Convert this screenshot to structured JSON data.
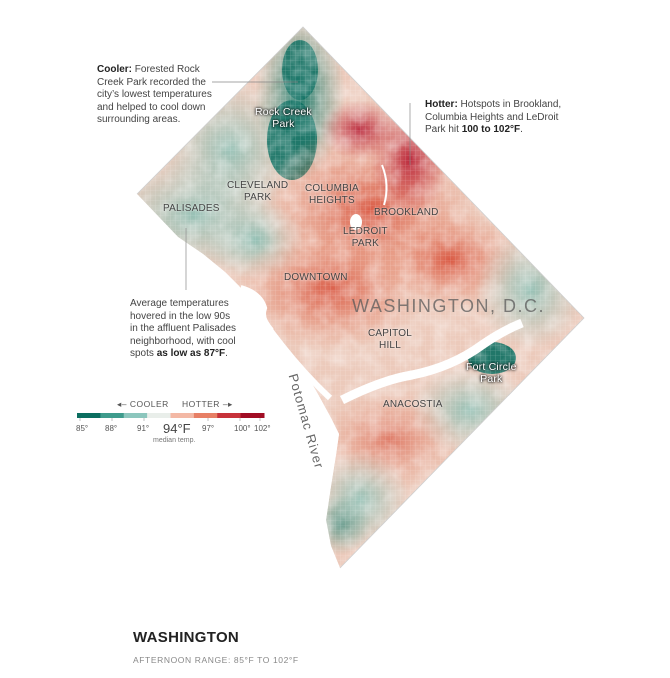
{
  "map": {
    "places": [
      {
        "id": "rock-creek-park",
        "text": "Rock Creek\nPark",
        "park": true
      },
      {
        "id": "cleveland-park",
        "text": "CLEVELAND\nPARK"
      },
      {
        "id": "columbia-heights",
        "text": "COLUMBIA\nHEIGHTS"
      },
      {
        "id": "brookland",
        "text": "BROOKLAND"
      },
      {
        "id": "palisades",
        "text": "PALISADES"
      },
      {
        "id": "ledroit-park",
        "text": "LEDROIT\nPARK"
      },
      {
        "id": "downtown",
        "text": "DOWNTOWN"
      },
      {
        "id": "capitol-hill",
        "text": "CAPITOL\nHILL"
      },
      {
        "id": "fort-circle-park",
        "text": "Fort Circle\nPark",
        "park": true
      },
      {
        "id": "anacostia",
        "text": "ANACOSTIA"
      }
    ],
    "city_label": "WASHINGTON, D.C.",
    "river_label": "Potomac River"
  },
  "annotations": {
    "cooler": {
      "lead": "Cooler:",
      "text": " Forested Rock Creek Park recorded the city’s lowest temperatures and helped to cool down surrounding areas."
    },
    "hotter": {
      "lead": "Hotter:",
      "text": " Hotspots in Brookland, Columbia Heights and LeDroit Park hit ",
      "strong": "100 to 102°F",
      "tail": "."
    },
    "palisades": {
      "text": "Average temperatures hovered in the low 90s in the affluent Palisades neighborhood, with cool spots ",
      "strong": "as low as 87°F",
      "tail": "."
    }
  },
  "legend": {
    "cooler_label": "COOLER",
    "hotter_label": "HOTTER",
    "ticks": [
      "85°",
      "88°",
      "91°",
      "97°",
      "100°",
      "102°"
    ],
    "median_value": "94°F",
    "median_label": "median temp.",
    "colors": [
      "#0b6e60",
      "#3e9b8c",
      "#8cc6bd",
      "#e9eeea",
      "#f3b8a5",
      "#e77f65",
      "#c7323a",
      "#a10d24"
    ]
  },
  "footer": {
    "title": "WASHINGTON",
    "subtitle": "AFTERNOON RANGE: 85°F TO 102°F"
  }
}
